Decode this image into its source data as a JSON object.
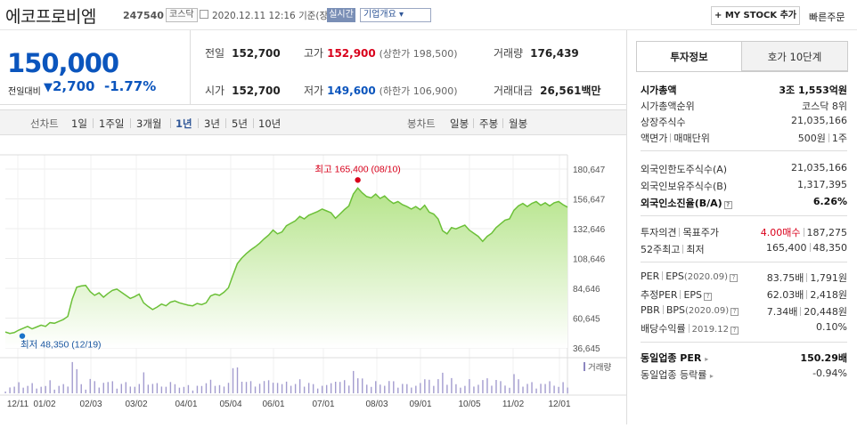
{
  "header": {
    "company": "에코프로비엠",
    "code": "247540",
    "market": "코스닥",
    "datetime": "2020.12.11 12:16",
    "basis": "기준(장중)",
    "live_label": "실시간",
    "company_info": "기업개요 ▾",
    "mystock": "+ MY STOCK 추가",
    "quick_order": "빠른주문"
  },
  "price": {
    "current": "150,000",
    "change_label": "전일대비",
    "change_arrow": "▼",
    "change": "2,700",
    "change_pct": "-1.77%"
  },
  "quote": {
    "prev_close_label": "전일",
    "prev_close": "152,700",
    "high_label": "고가",
    "high": "152,900",
    "upper_limit": "(상한가 198,500)",
    "volume_label": "거래량",
    "volume": "176,439",
    "open_label": "시가",
    "open": "152,700",
    "low_label": "저가",
    "low": "149,600",
    "lower_limit": "(하한가 106,900)",
    "amount_label": "거래대금",
    "amount": "26,561",
    "amount_unit": "백만"
  },
  "period": {
    "line_label": "선차트",
    "line_items": [
      "1일",
      "1주일",
      "3개월",
      "1년",
      "3년",
      "5년",
      "10년"
    ],
    "selected": "1년",
    "candle_label": "봉차트",
    "candle_items": [
      "일봉",
      "주봉",
      "월봉"
    ]
  },
  "chart_data": {
    "type": "area",
    "ylim": [
      36645,
      180647
    ],
    "yticks": [
      "180,647",
      "156,647",
      "132,646",
      "108,646",
      "84,646",
      "60,645",
      "36,645"
    ],
    "xticks": [
      "12/11",
      "01/02",
      "02/03",
      "03/02",
      "04/01",
      "05/04",
      "06/01",
      "07/01",
      "08/03",
      "09/01",
      "10/05",
      "11/02",
      "12/01"
    ],
    "high_label": "최고 165,400 (08/10)",
    "low_label": "최저 48,350 (12/19)",
    "volume_label": "거래량",
    "series_color": "#7ac943",
    "values": [
      49500,
      48350,
      49000,
      51000,
      52500,
      54000,
      52000,
      53500,
      55000,
      54000,
      57000,
      56500,
      58000,
      59500,
      62000,
      76000,
      85500,
      86500,
      87000,
      82000,
      79000,
      81000,
      77500,
      80500,
      83000,
      84000,
      81500,
      79000,
      76500,
      78000,
      80000,
      73000,
      70000,
      67500,
      69500,
      72000,
      70500,
      73500,
      74500,
      73000,
      72000,
      71000,
      70500,
      72500,
      71500,
      73000,
      78500,
      80000,
      79000,
      81500,
      85000,
      95000,
      104500,
      109000,
      112500,
      115500,
      118000,
      121000,
      124500,
      127500,
      131500,
      128500,
      130000,
      135000,
      137000,
      139000,
      142500,
      140500,
      143500,
      145000,
      146500,
      148500,
      147000,
      145500,
      141000,
      144500,
      148000,
      151000,
      160500,
      165400,
      161500,
      158500,
      157500,
      160500,
      157000,
      159000,
      155500,
      153000,
      154500,
      152000,
      150500,
      148500,
      150500,
      148000,
      151500,
      146000,
      144500,
      140500,
      131000,
      128500,
      133500,
      132500,
      134000,
      135500,
      131500,
      129000,
      126500,
      122500,
      126500,
      129000,
      133500,
      136500,
      139500,
      140500,
      147500,
      151000,
      153000,
      150500,
      153000,
      154500,
      151500,
      153500,
      151000,
      153500,
      154500,
      152000,
      150000
    ]
  },
  "sidebar": {
    "tab_active": "투자정보",
    "tab_inactive": "호가 10단계",
    "mcap_label": "시가총액",
    "mcap": "3조 1,553억원",
    "mcap_rank_label": "시가총액순위",
    "mcap_rank": "코스닥 8위",
    "shares_label": "상장주식수",
    "shares": "21,035,166",
    "par_label": "액면가",
    "unit_label": "매매단위",
    "par": "500원",
    "unit": "1주",
    "foreign_limit_label": "외국인한도주식수(A)",
    "foreign_limit": "21,035,166",
    "foreign_hold_label": "외국인보유주식수(B)",
    "foreign_hold": "1,317,395",
    "foreign_ratio_label": "외국인소진율(B/A)",
    "foreign_ratio": "6.26%",
    "opinion_label": "투자의견",
    "target_label": "목표주가",
    "opinion": "4.00매수",
    "target": "187,275",
    "wk52_hi_label": "52주최고",
    "wk52_lo_label": "최저",
    "wk52_hi": "165,400",
    "wk52_lo": "48,350",
    "per_label": "PER",
    "eps_label": "EPS",
    "eps_date": "(2020.09)",
    "per": "83.75배",
    "eps": "1,791원",
    "eper_label": "추정PER",
    "eeps_label": "EPS",
    "eper": "62.03배",
    "eeps": "2,418원",
    "pbr_label": "PBR",
    "bps_label": "BPS",
    "bps_date": "(2020.09)",
    "pbr": "7.34배",
    "bps": "20,448원",
    "div_label": "배당수익률",
    "div_date": "2019.12",
    "div": "0.10%",
    "ind_per_label": "동일업종 PER",
    "ind_per": "150.29배",
    "ind_chg_label": "동일업종 등락률",
    "ind_chg": "-0.94%"
  }
}
